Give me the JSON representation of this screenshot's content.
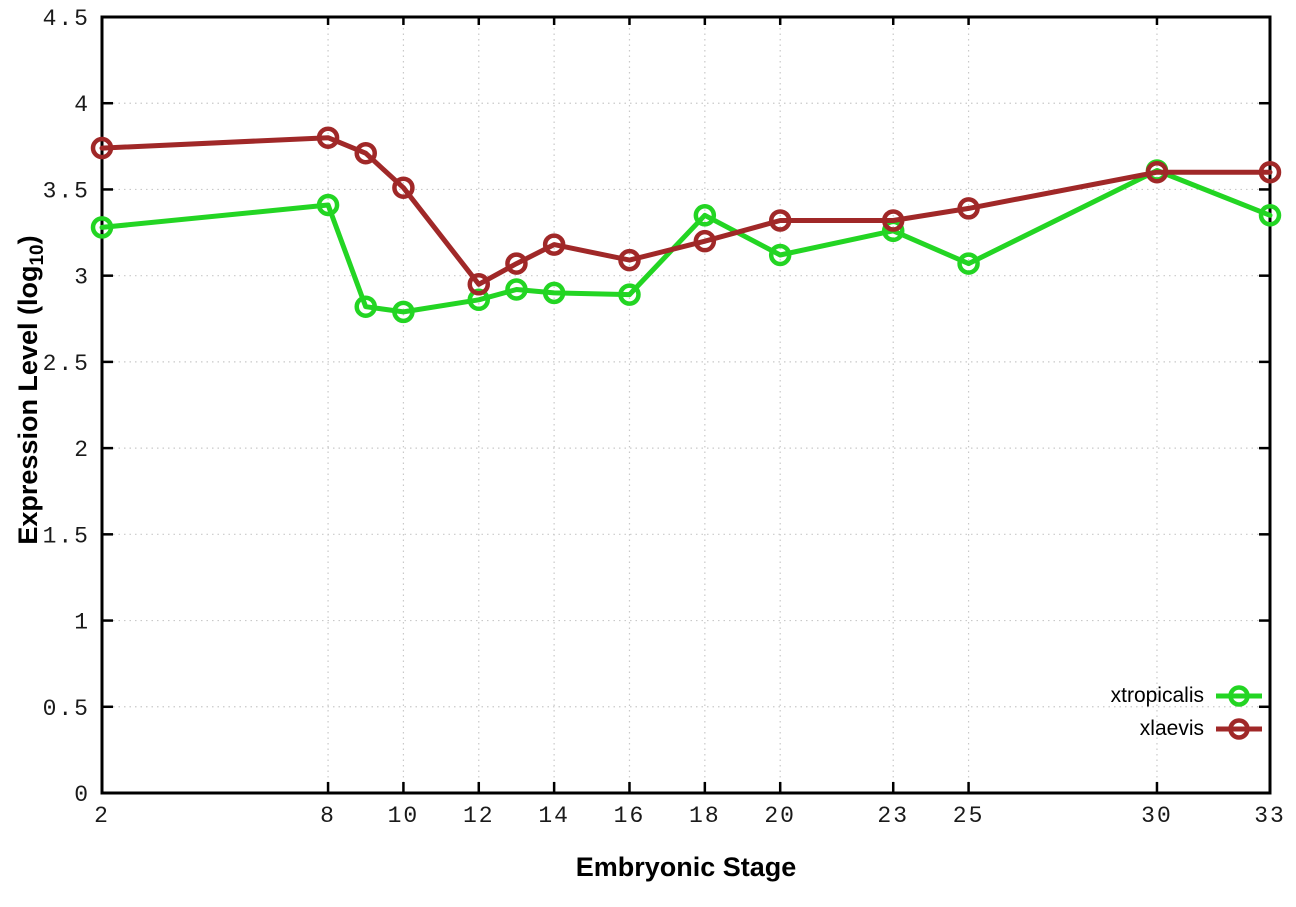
{
  "chart_data": {
    "type": "line",
    "title": "",
    "xlabel": "Embryonic Stage",
    "ylabel": "Expression Level (log10)",
    "ylabel_main": "Expression Level (log",
    "ylabel_sub": "10",
    "ylabel_close": ")",
    "xlim": [
      2,
      33
    ],
    "ylim": [
      0,
      4.5
    ],
    "grid": true,
    "legend_position": "inside-bottom-right",
    "xticks": {
      "values": [
        2,
        8,
        10,
        12,
        14,
        16,
        18,
        20,
        23,
        25,
        30,
        33
      ],
      "labels": [
        "2",
        "8",
        "10",
        "12",
        "14",
        "16",
        "18",
        "20",
        "23",
        "25",
        "30",
        "33"
      ]
    },
    "yticks": {
      "values": [
        0,
        0.5,
        1,
        1.5,
        2,
        2.5,
        3,
        3.5,
        4,
        4.5
      ],
      "labels": [
        "0",
        "0.5",
        "1",
        "1.5",
        "2",
        "2.5",
        "3",
        "3.5",
        "4",
        "4.5"
      ]
    },
    "x": [
      2,
      8,
      9,
      10,
      12,
      13,
      14,
      16,
      18,
      20,
      23,
      25,
      30,
      33
    ],
    "series": [
      {
        "name": "xtropicalis",
        "color": "#23d523",
        "values": [
          3.28,
          3.41,
          2.82,
          2.79,
          2.86,
          2.92,
          2.9,
          2.89,
          3.35,
          3.12,
          3.26,
          3.07,
          3.61,
          3.35
        ]
      },
      {
        "name": "xlaevis",
        "color": "#a02828",
        "values": [
          3.74,
          3.8,
          3.71,
          3.51,
          2.95,
          3.07,
          3.18,
          3.09,
          3.2,
          3.32,
          3.32,
          3.39,
          3.6,
          3.6
        ]
      }
    ]
  },
  "colors": {
    "grid": "#c9c9c9",
    "axis": "#000000",
    "tick_label": "#1a1a1a",
    "background": "#ffffff"
  }
}
